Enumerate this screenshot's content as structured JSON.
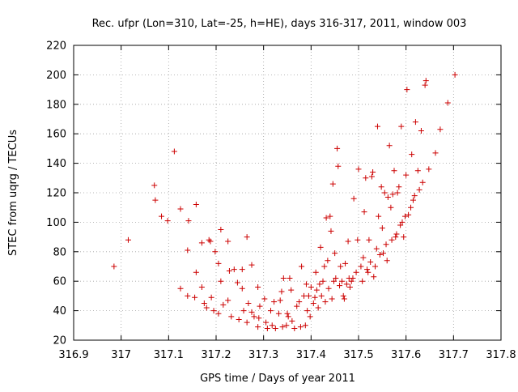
{
  "colors": {
    "series": "#cc0000",
    "grid": "#a0a0a0",
    "axis": "#000000"
  },
  "chart_data": {
    "type": "scatter",
    "title": "Rec. ufpr (Lon=310, Lat=-25, h=HE), days 316-317, 2011, window 003",
    "xlabel": "GPS time / Days of year 2011",
    "ylabel": "STEC from uqrg / TECUs",
    "xlim": [
      316.9,
      317.8
    ],
    "ylim": [
      20,
      220
    ],
    "xticks": [
      "316.9",
      "317",
      "317.1",
      "317.2",
      "317.3",
      "317.4",
      "317.5",
      "317.6",
      "317.7",
      "317.8"
    ],
    "yticks": [
      "20",
      "40",
      "60",
      "80",
      "100",
      "120",
      "140",
      "160",
      "180",
      "200",
      "220"
    ],
    "xtick_values": [
      316.9,
      317.0,
      317.1,
      317.2,
      317.3,
      317.4,
      317.5,
      317.6,
      317.7,
      317.8
    ],
    "ytick_values": [
      20,
      40,
      60,
      80,
      100,
      120,
      140,
      160,
      180,
      200,
      220
    ],
    "grid": true,
    "legend": "none",
    "marker": "plus",
    "points": [
      [
        316.985,
        70
      ],
      [
        317.015,
        88
      ],
      [
        317.07,
        125
      ],
      [
        317.072,
        115
      ],
      [
        317.085,
        104
      ],
      [
        317.098,
        101
      ],
      [
        317.112,
        148
      ],
      [
        317.125,
        109
      ],
      [
        317.142,
        101
      ],
      [
        317.14,
        81
      ],
      [
        317.158,
        112
      ],
      [
        317.125,
        55
      ],
      [
        317.14,
        50
      ],
      [
        317.155,
        49
      ],
      [
        317.158,
        66
      ],
      [
        317.17,
        86
      ],
      [
        317.185,
        88
      ],
      [
        317.188,
        87
      ],
      [
        317.198,
        80
      ],
      [
        317.205,
        72
      ],
      [
        317.21,
        95
      ],
      [
        317.225,
        87
      ],
      [
        317.238,
        68
      ],
      [
        317.255,
        68
      ],
      [
        317.265,
        90
      ],
      [
        317.275,
        71
      ],
      [
        317.288,
        56
      ],
      [
        317.17,
        56
      ],
      [
        317.175,
        45
      ],
      [
        317.18,
        42
      ],
      [
        317.19,
        49
      ],
      [
        317.195,
        40
      ],
      [
        317.205,
        38
      ],
      [
        317.21,
        60
      ],
      [
        317.215,
        44
      ],
      [
        317.225,
        47
      ],
      [
        317.228,
        67
      ],
      [
        317.232,
        36
      ],
      [
        317.245,
        59
      ],
      [
        317.248,
        34
      ],
      [
        317.255,
        55
      ],
      [
        317.258,
        40
      ],
      [
        317.265,
        32
      ],
      [
        317.268,
        45
      ],
      [
        317.275,
        39
      ],
      [
        317.28,
        36
      ],
      [
        317.288,
        29
      ],
      [
        317.29,
        35
      ],
      [
        317.292,
        43
      ],
      [
        317.302,
        48
      ],
      [
        317.305,
        32
      ],
      [
        317.308,
        28
      ],
      [
        317.315,
        40
      ],
      [
        317.318,
        30
      ],
      [
        317.322,
        46
      ],
      [
        317.325,
        28
      ],
      [
        317.332,
        38
      ],
      [
        317.335,
        47
      ],
      [
        317.338,
        53
      ],
      [
        317.34,
        29
      ],
      [
        317.342,
        62
      ],
      [
        317.348,
        30
      ],
      [
        317.35,
        38
      ],
      [
        317.352,
        36
      ],
      [
        317.355,
        62
      ],
      [
        317.358,
        54
      ],
      [
        317.36,
        33
      ],
      [
        317.365,
        28
      ],
      [
        317.37,
        43
      ],
      [
        317.375,
        46
      ],
      [
        317.378,
        29
      ],
      [
        317.38,
        70
      ],
      [
        317.385,
        50
      ],
      [
        317.388,
        30
      ],
      [
        317.39,
        58
      ],
      [
        317.392,
        40
      ],
      [
        317.395,
        50
      ],
      [
        317.398,
        36
      ],
      [
        317.4,
        56
      ],
      [
        317.405,
        45
      ],
      [
        317.408,
        49
      ],
      [
        317.41,
        66
      ],
      [
        317.412,
        54
      ],
      [
        317.415,
        42
      ],
      [
        317.418,
        58
      ],
      [
        317.42,
        83
      ],
      [
        317.422,
        50
      ],
      [
        317.425,
        60
      ],
      [
        317.428,
        70
      ],
      [
        317.43,
        46
      ],
      [
        317.432,
        103
      ],
      [
        317.435,
        74
      ],
      [
        317.437,
        55
      ],
      [
        317.44,
        104
      ],
      [
        317.442,
        94
      ],
      [
        317.444,
        48
      ],
      [
        317.446,
        126
      ],
      [
        317.448,
        60
      ],
      [
        317.45,
        79
      ],
      [
        317.452,
        62
      ],
      [
        317.455,
        150
      ],
      [
        317.457,
        138
      ],
      [
        317.46,
        57
      ],
      [
        317.462,
        70
      ],
      [
        317.465,
        60
      ],
      [
        317.468,
        50
      ],
      [
        317.47,
        48
      ],
      [
        317.472,
        72
      ],
      [
        317.475,
        58
      ],
      [
        317.478,
        87
      ],
      [
        317.48,
        62
      ],
      [
        317.482,
        56
      ],
      [
        317.485,
        60
      ],
      [
        317.488,
        62
      ],
      [
        317.49,
        116
      ],
      [
        317.495,
        66
      ],
      [
        317.498,
        88
      ],
      [
        317.5,
        136
      ],
      [
        317.505,
        70
      ],
      [
        317.508,
        60
      ],
      [
        317.51,
        76
      ],
      [
        317.512,
        107
      ],
      [
        317.515,
        130
      ],
      [
        317.518,
        68
      ],
      [
        317.52,
        66
      ],
      [
        317.522,
        88
      ],
      [
        317.525,
        73
      ],
      [
        317.528,
        131
      ],
      [
        317.53,
        134
      ],
      [
        317.532,
        63
      ],
      [
        317.535,
        70
      ],
      [
        317.538,
        82
      ],
      [
        317.54,
        165
      ],
      [
        317.542,
        104
      ],
      [
        317.545,
        78
      ],
      [
        317.548,
        124
      ],
      [
        317.55,
        96
      ],
      [
        317.552,
        79
      ],
      [
        317.555,
        120
      ],
      [
        317.558,
        85
      ],
      [
        317.56,
        74
      ],
      [
        317.562,
        117
      ],
      [
        317.565,
        152
      ],
      [
        317.568,
        110
      ],
      [
        317.57,
        88
      ],
      [
        317.572,
        119
      ],
      [
        317.575,
        135
      ],
      [
        317.578,
        90
      ],
      [
        317.58,
        92
      ],
      [
        317.582,
        120
      ],
      [
        317.585,
        124
      ],
      [
        317.588,
        98
      ],
      [
        317.59,
        165
      ],
      [
        317.592,
        100
      ],
      [
        317.595,
        90
      ],
      [
        317.598,
        104
      ],
      [
        317.6,
        132
      ],
      [
        317.602,
        190
      ],
      [
        317.605,
        105
      ],
      [
        317.61,
        110
      ],
      [
        317.612,
        146
      ],
      [
        317.615,
        115
      ],
      [
        317.618,
        118
      ],
      [
        317.62,
        168
      ],
      [
        317.625,
        135
      ],
      [
        317.628,
        122
      ],
      [
        317.632,
        162
      ],
      [
        317.635,
        127
      ],
      [
        317.64,
        193
      ],
      [
        317.642,
        196
      ],
      [
        317.648,
        136
      ],
      [
        317.662,
        147
      ],
      [
        317.672,
        163
      ],
      [
        317.688,
        181
      ],
      [
        317.703,
        200
      ]
    ]
  }
}
